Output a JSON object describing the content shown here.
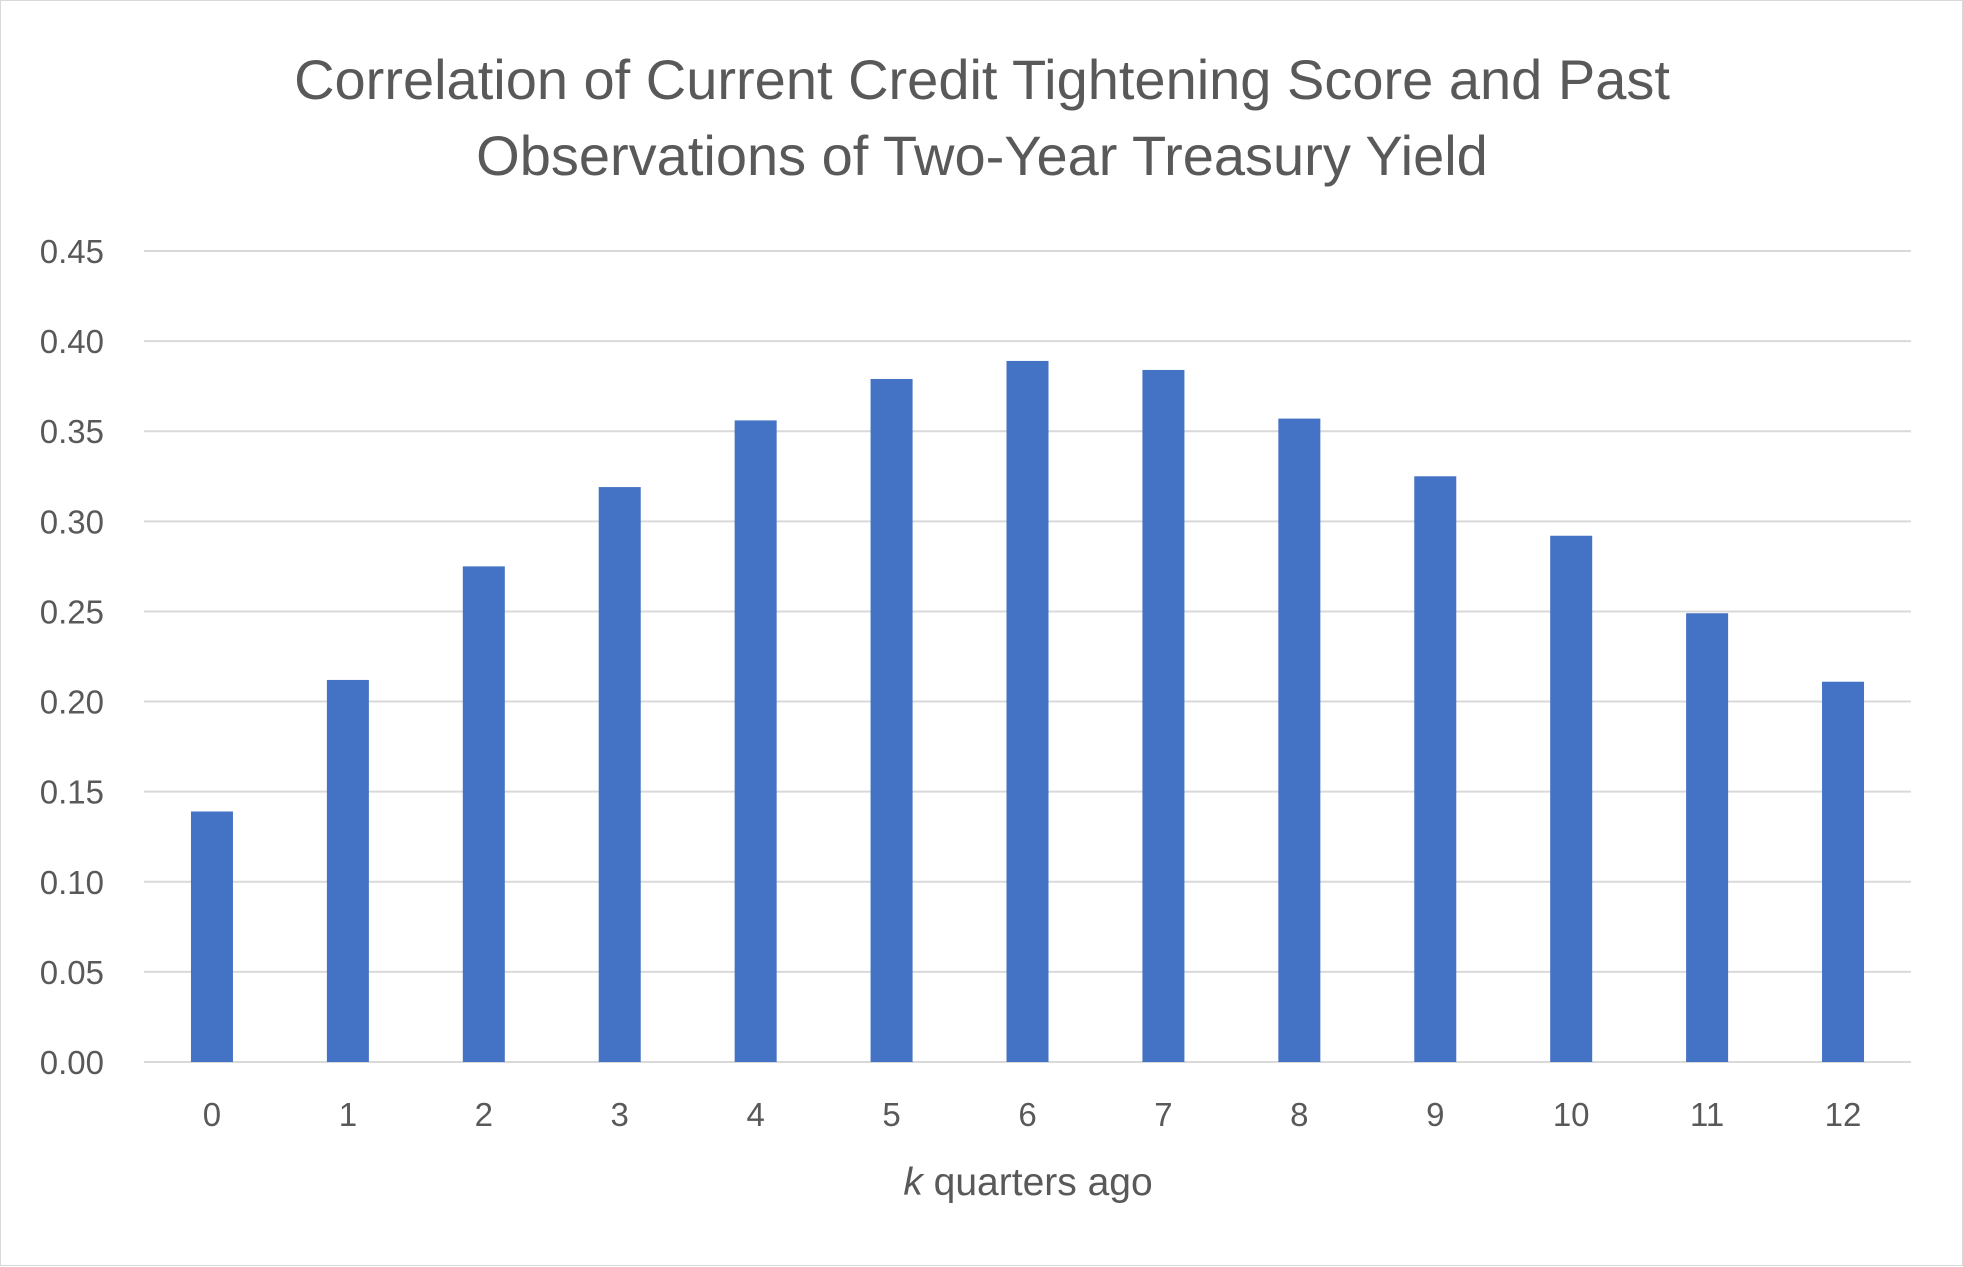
{
  "chart_data": {
    "type": "bar",
    "title_lines": [
      "Correlation of Current Credit Tightening Score and Past",
      "Observations of Two-Year Treasury Yield"
    ],
    "xlabel_italic": "k",
    "xlabel_rest": " quarters ago",
    "ylabel": "",
    "categories": [
      "0",
      "1",
      "2",
      "3",
      "4",
      "5",
      "6",
      "7",
      "8",
      "9",
      "10",
      "11",
      "12"
    ],
    "values": [
      0.139,
      0.212,
      0.275,
      0.319,
      0.356,
      0.379,
      0.389,
      0.384,
      0.357,
      0.325,
      0.292,
      0.249,
      0.211
    ],
    "ylim": [
      0,
      0.45
    ],
    "yticks": [
      "0.00",
      "0.05",
      "0.10",
      "0.15",
      "0.20",
      "0.25",
      "0.30",
      "0.35",
      "0.40",
      "0.45"
    ],
    "grid": true,
    "legend": "none",
    "bar_color": "#4472C4",
    "grid_color": "#D9D9D9",
    "text_color": "#595959"
  }
}
